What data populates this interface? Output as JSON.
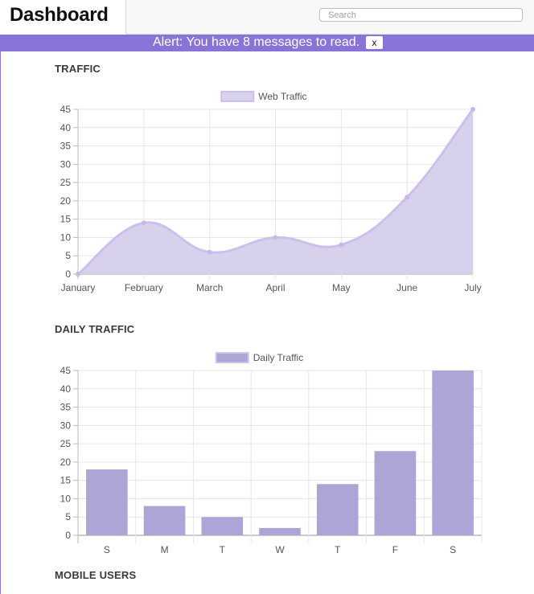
{
  "header": {
    "title": "Dashboard",
    "search": {
      "placeholder": "Search",
      "value": ""
    }
  },
  "alert": {
    "text": "Alert: You have 8 messages to read.",
    "close_label": "x"
  },
  "sections": {
    "traffic": "TRAFFIC",
    "daily_traffic": "DAILY TRAFFIC",
    "mobile_users": "MOBILE USERS"
  },
  "colors": {
    "accent": "#8a73d6",
    "area_fill": "#d8d1ec",
    "line": "#cbbfec",
    "bar_fill": "#aca5d6",
    "grid": "#e6e6e6"
  },
  "chart_data": [
    {
      "type": "area",
      "categories": [
        "January",
        "February",
        "March",
        "April",
        "May",
        "June",
        "July"
      ],
      "series": [
        {
          "name": "Web Traffic",
          "values": [
            0,
            14,
            6,
            10,
            8,
            21,
            45
          ]
        }
      ],
      "ylim": [
        0,
        45
      ],
      "yticks": [
        0,
        5,
        10,
        15,
        20,
        25,
        30,
        35,
        40,
        45
      ],
      "grid": true,
      "legend": "top-center"
    },
    {
      "type": "bar",
      "categories": [
        "S",
        "M",
        "T",
        "W",
        "T",
        "F",
        "S"
      ],
      "series": [
        {
          "name": "Daily Traffic",
          "values": [
            18,
            8,
            5,
            2,
            14,
            23,
            45
          ]
        }
      ],
      "ylim": [
        0,
        45
      ],
      "yticks": [
        0,
        5,
        10,
        15,
        20,
        25,
        30,
        35,
        40,
        45
      ],
      "grid": true,
      "legend": "top-center"
    }
  ]
}
